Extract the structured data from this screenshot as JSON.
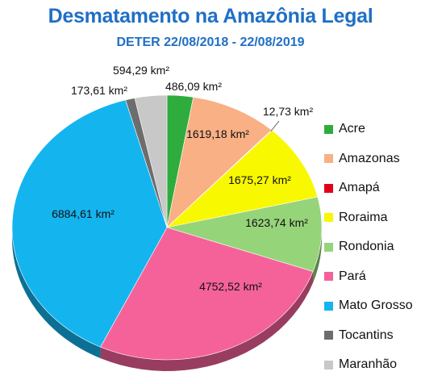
{
  "chart_data": {
    "type": "pie",
    "title": "Desmatamento na Amazônia Legal",
    "subtitle": "DETER 22/08/2018 - 22/08/2019",
    "unit": "km²",
    "legend_position": "right",
    "slices": [
      {
        "name": "Acre",
        "value": 486.09,
        "label": "486,09 km²",
        "color": "#2eac3e"
      },
      {
        "name": "Amazonas",
        "value": 1619.18,
        "label": "1619,18 km²",
        "color": "#f9b085"
      },
      {
        "name": "Amapá",
        "value": 12.73,
        "label": "12,73 km²",
        "color": "#e2001a"
      },
      {
        "name": "Roraima",
        "value": 1675.27,
        "label": "1675,27 km²",
        "color": "#f8f800"
      },
      {
        "name": "Rondonia",
        "value": 1623.74,
        "label": "1623,74 km²",
        "color": "#96d47a"
      },
      {
        "name": "Pará",
        "value": 4752.52,
        "label": "4752,52 km²",
        "color": "#f5629a"
      },
      {
        "name": "Mato Grosso",
        "value": 6884.61,
        "label": "6884,61 km²",
        "color": "#14b4ef"
      },
      {
        "name": "Tocantins",
        "value": 173.61,
        "label": "173,61 km²",
        "color": "#6d6d6d"
      },
      {
        "name": "Maranhão",
        "value": 594.29,
        "label": "594,29 km²",
        "color": "#c8c8c8"
      }
    ]
  }
}
